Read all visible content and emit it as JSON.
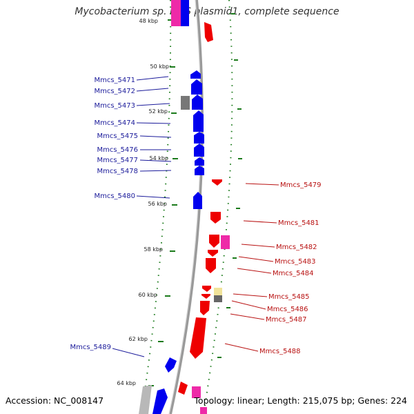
{
  "title": "Mycobacterium sp. MCS plasmid1, complete sequence",
  "footer": {
    "accession": "Accession: NC_008147",
    "stats": "Topology: linear; Length: 215,075 bp; Genes: 224"
  },
  "colors": {
    "forward_gene": "#0000ee",
    "reverse_gene": "#ee0000",
    "forward_label": "#1a1a9a",
    "reverse_label": "#b81010",
    "rna_pink": "#ee2aa8",
    "gray_gene": "#777777",
    "pale_yellow": "#f1e39a",
    "tick_green": "#1a7a1a",
    "backbone": "#9a9a9a"
  },
  "ticks": [
    {
      "label": "48 kbp",
      "kbp": 48
    },
    {
      "label": "50 kbp",
      "kbp": 50
    },
    {
      "label": "52 kbp",
      "kbp": 52
    },
    {
      "label": "54 kbp",
      "kbp": 54
    },
    {
      "label": "56 kbp",
      "kbp": 56
    },
    {
      "label": "58 kbp",
      "kbp": 58
    },
    {
      "label": "60 kbp",
      "kbp": 60
    },
    {
      "label": "62 kbp",
      "kbp": 62
    },
    {
      "label": "64 kbp",
      "kbp": 64
    }
  ],
  "forward_genes": [
    {
      "label": "Mmcs_5471",
      "start_kbp": 50.1,
      "end_kbp": 50.3
    },
    {
      "label": "Mmcs_5472",
      "start_kbp": 50.5,
      "end_kbp": 51.1
    },
    {
      "label": "Mmcs_5473",
      "start_kbp": 51.1,
      "end_kbp": 51.6
    },
    {
      "label": "Mmcs_5474",
      "start_kbp": 51.6,
      "end_kbp": 52.5
    },
    {
      "label": "Mmcs_5475",
      "start_kbp": 52.5,
      "end_kbp": 53.1
    },
    {
      "label": "Mmcs_5476",
      "start_kbp": 53.1,
      "end_kbp": 53.7
    },
    {
      "label": "Mmcs_5477",
      "start_kbp": 53.7,
      "end_kbp": 54.05
    },
    {
      "label": "Mmcs_5478",
      "start_kbp": 54.05,
      "end_kbp": 54.45
    },
    {
      "label": "Mmcs_5480",
      "start_kbp": 55.4,
      "end_kbp": 56.1
    },
    {
      "label": "Mmcs_5489",
      "start_kbp": 62.7,
      "end_kbp": 63.3
    }
  ],
  "reverse_genes": [
    {
      "label": "Mmcs_5479",
      "start_kbp": 54.9,
      "end_kbp": 55.2
    },
    {
      "label": "Mmcs_5481",
      "start_kbp": 56.4,
      "end_kbp": 56.9
    },
    {
      "label": "Mmcs_5482",
      "start_kbp": 57.4,
      "end_kbp": 58.0
    },
    {
      "label": "Mmcs_5483",
      "start_kbp": 58.1,
      "end_kbp": 58.4
    },
    {
      "label": "Mmcs_5484",
      "start_kbp": 58.4,
      "end_kbp": 59.1
    },
    {
      "label": "Mmcs_5485",
      "start_kbp": 59.6,
      "end_kbp": 59.85
    },
    {
      "label": "Mmcs_5486",
      "start_kbp": 59.9,
      "end_kbp": 60.2
    },
    {
      "label": "Mmcs_5487",
      "start_kbp": 60.2,
      "end_kbp": 61.0
    },
    {
      "label": "Mmcs_5488",
      "start_kbp": 61.0,
      "end_kbp": 62.9
    }
  ]
}
